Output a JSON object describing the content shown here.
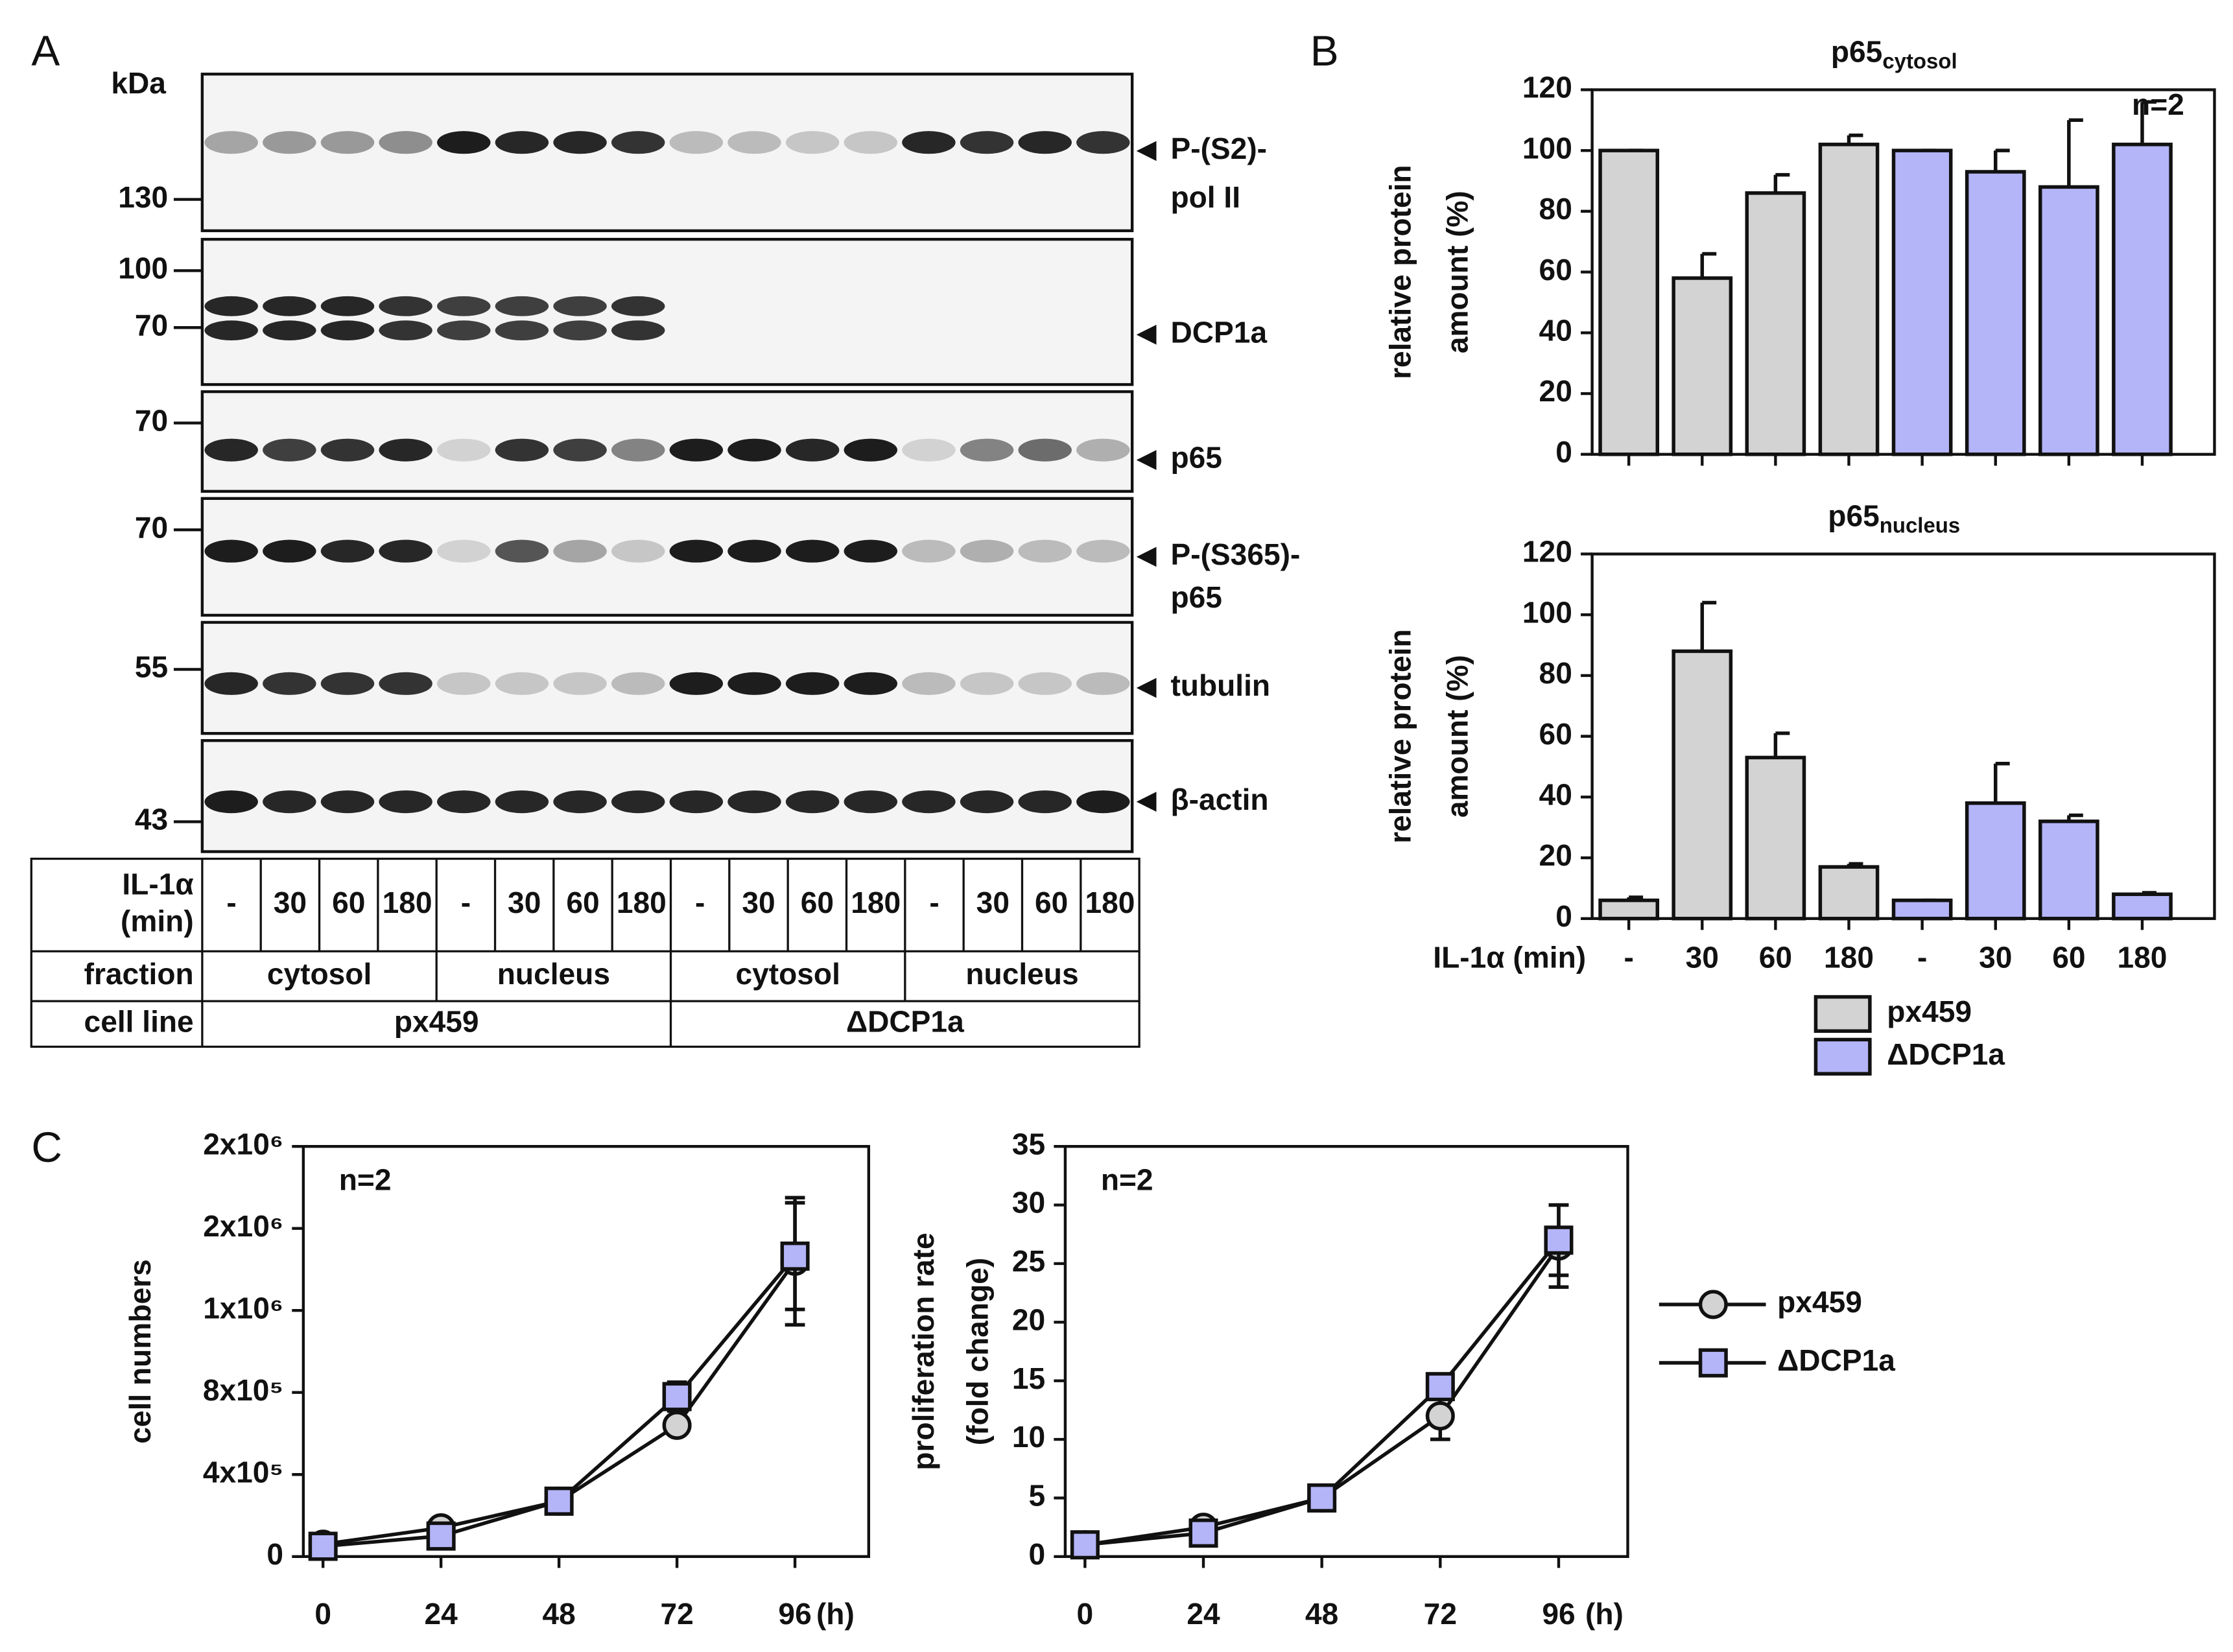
{
  "panel_labels": {
    "a": "A",
    "b": "B",
    "c": "C"
  },
  "blot": {
    "unit": "kDa",
    "markers": [
      "130",
      "100",
      "70",
      "70",
      "70",
      "55",
      "43"
    ],
    "proteins": [
      [
        "P-(S2)-",
        "pol II"
      ],
      [
        "DCP1a"
      ],
      [
        "p65"
      ],
      [
        "P-(S365)-",
        "p65"
      ],
      [
        "tubulin"
      ],
      [
        "β-actin"
      ]
    ]
  },
  "table": {
    "rows": [
      {
        "label": [
          "IL-1α",
          "(min)"
        ],
        "cells": [
          "-",
          "30",
          "60",
          "180",
          "-",
          "30",
          "60",
          "180",
          "-",
          "30",
          "60",
          "180",
          "-",
          "30",
          "60",
          "180"
        ]
      },
      {
        "label": [
          "fraction"
        ],
        "cells": [
          "cytosol",
          "nucleus",
          "cytosol",
          "nucleus"
        ]
      },
      {
        "label": [
          "cell line"
        ],
        "cells": [
          "px459",
          "ΔDCP1a"
        ]
      }
    ]
  },
  "chart_data": [
    {
      "type": "bar",
      "title": "p65",
      "title_subscript": "cytosol",
      "annotation": "n=2",
      "ylabel": [
        "relative protein",
        "amount (%)"
      ],
      "categories": [
        null,
        null,
        null,
        null,
        null,
        null,
        null,
        null
      ],
      "series": [
        {
          "color": "#d3d3d3",
          "values": [
            100,
            58,
            86,
            102,
            null,
            null,
            null,
            null
          ],
          "errors": [
            0,
            8,
            6,
            3,
            null,
            null,
            null,
            null
          ]
        },
        {
          "color": "#b4b4f8",
          "values": [
            null,
            null,
            null,
            null,
            100,
            93,
            88,
            102
          ],
          "errors": [
            null,
            null,
            null,
            null,
            0,
            7,
            22,
            14
          ]
        }
      ],
      "ylim": [
        0,
        120
      ],
      "yticks": [
        0,
        20,
        40,
        60,
        80,
        100,
        120
      ]
    },
    {
      "type": "bar",
      "title": "p65",
      "title_subscript": "nucleus",
      "ylabel": [
        "relative protein",
        "amount (%)"
      ],
      "xlabel": "IL-1α (min)",
      "categories": [
        "-",
        "30",
        "60",
        "180",
        "-",
        "30",
        "60",
        "180"
      ],
      "series": [
        {
          "name": "px459",
          "color": "#d3d3d3",
          "values": [
            6,
            88,
            53,
            17,
            null,
            null,
            null,
            null
          ],
          "errors": [
            1,
            16,
            8,
            1,
            null,
            null,
            null,
            null
          ]
        },
        {
          "name": "ΔDCP1a",
          "color": "#b4b4f8",
          "values": [
            null,
            null,
            null,
            null,
            6,
            38,
            32,
            8
          ],
          "errors": [
            null,
            null,
            null,
            null,
            0,
            13,
            2,
            0.5
          ]
        }
      ],
      "ylim": [
        0,
        120
      ],
      "yticks": [
        0,
        20,
        40,
        60,
        80,
        100,
        120
      ],
      "legend": "bottom"
    },
    {
      "type": "line",
      "annotation": "n=2",
      "ylabel": [
        "cell numbers"
      ],
      "xlabel": "(h)",
      "x": [
        0,
        24,
        48,
        72,
        96
      ],
      "xlim": [
        -4,
        111
      ],
      "xticks": [
        0,
        24,
        48,
        72,
        96
      ],
      "ylim": [
        0,
        2000000
      ],
      "yticks": [
        0,
        {
          "value": 400000,
          "label": "4x10⁵"
        },
        {
          "value": 800000,
          "label": "8x10⁵"
        },
        {
          "value": 1200000,
          "label": "1x10⁶"
        },
        {
          "value": 1600000,
          "label": "2x10⁶"
        },
        {
          "value": 2000000,
          "label": "2x10⁶"
        }
      ],
      "series": [
        {
          "color": "#d3d3d3",
          "marker": "circle",
          "values": [
            60000,
            140000,
            270000,
            640000,
            1440000
          ],
          "errors": [
            0,
            0,
            0,
            40000,
            310000
          ]
        },
        {
          "color": "#b4b4f8",
          "marker": "square",
          "values": [
            50000,
            100000,
            270000,
            780000,
            1465000
          ],
          "errors": [
            0,
            0,
            0,
            70000,
            260000
          ]
        }
      ]
    },
    {
      "type": "line",
      "annotation": "n=2",
      "ylabel": [
        "proliferation rate",
        "(fold change)"
      ],
      "xlabel": "(h)",
      "x": [
        0,
        24,
        48,
        72,
        96
      ],
      "xlim": [
        -4,
        110
      ],
      "xticks": [
        0,
        24,
        48,
        72,
        96
      ],
      "ylim": [
        0,
        35
      ],
      "yticks": [
        0,
        5,
        10,
        15,
        20,
        25,
        30,
        35
      ],
      "series": [
        {
          "name": "px459",
          "color": "#d3d3d3",
          "marker": "circle",
          "values": [
            1,
            2.5,
            5,
            12,
            26.5
          ],
          "errors": [
            0,
            0,
            0,
            2,
            3.5
          ]
        },
        {
          "name": "ΔDCP1a",
          "color": "#b4b4f8",
          "marker": "square",
          "values": [
            1,
            2,
            5,
            14.5,
            27
          ],
          "errors": [
            0,
            0,
            0,
            0.5,
            3
          ]
        }
      ],
      "legend": "right"
    }
  ]
}
